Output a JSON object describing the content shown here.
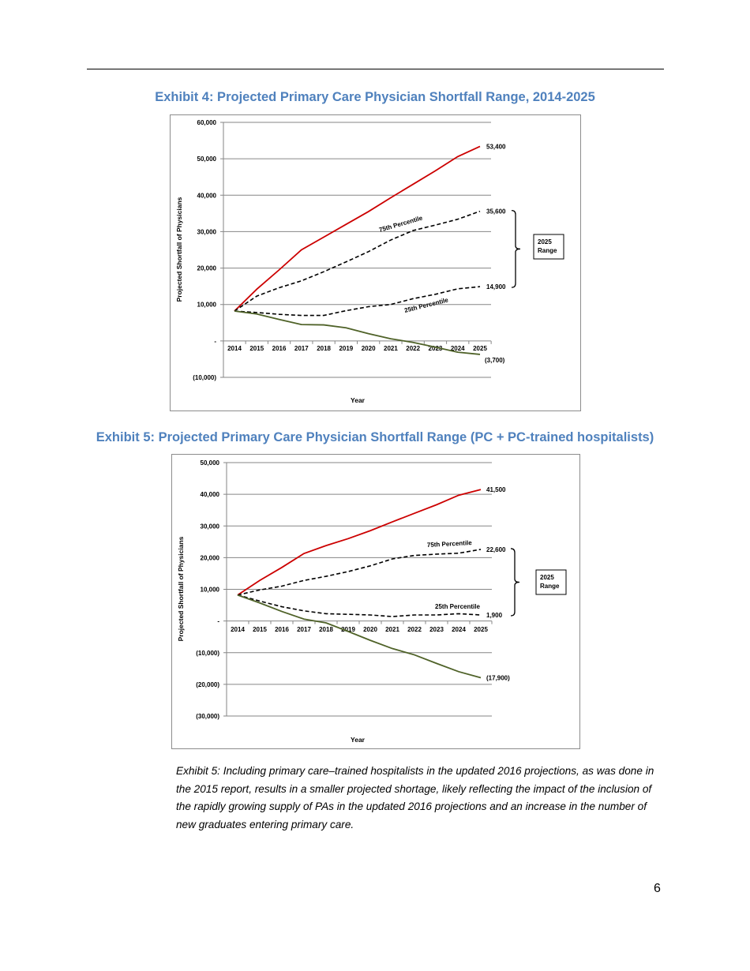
{
  "page": {
    "exhibit4_title": "Exhibit 4: Projected Primary Care Physician Shortfall Range, 2014-2025",
    "exhibit5_title": "Exhibit 5: Projected Primary Care Physician Shortfall Range (PC + PC-trained hospitalists)",
    "caption": "Exhibit 5: Including primary care–trained hospitalists in the updated 2016 projections, as was done in the 2015 report, results in a smaller projected shortage, likely reflecting the impact of the inclusion of the rapidly growing supply of PAs in the updated 2016 projections and an increase in the number of new graduates entering primary care.",
    "page_number": "6",
    "title_color": "#4f81bd"
  },
  "chart_data": [
    {
      "type": "line",
      "title": "",
      "xlabel": "Year",
      "ylabel": "Projected Shortfall of Physicians",
      "x": [
        "2014",
        "2015",
        "2016",
        "2017",
        "2018",
        "2019",
        "2020",
        "2021",
        "2022",
        "2023",
        "2024",
        "2025"
      ],
      "ylim": [
        -10000,
        60000
      ],
      "yticks": [
        -10000,
        0,
        10000,
        20000,
        30000,
        40000,
        50000,
        60000
      ],
      "ytick_labels": [
        "(10,000)",
        "-",
        "10,000",
        "20,000",
        "30,000",
        "40,000",
        "50,000",
        "60,000"
      ],
      "grid": true,
      "legend": "none",
      "series": [
        {
          "color": "#cc0000",
          "style": "solid",
          "end_label": "53,400",
          "values": [
            8200,
            14200,
            19500,
            25000,
            28500,
            32000,
            35500,
            39300,
            43000,
            46700,
            50600,
            53400
          ]
        },
        {
          "color": "#000000",
          "style": "dashed",
          "end_label": "35,600",
          "values": [
            8200,
            12300,
            14600,
            16500,
            19000,
            21700,
            24500,
            27700,
            30300,
            31800,
            33400,
            35600
          ]
        },
        {
          "color": "#000000",
          "style": "dashed",
          "end_label": "14,900",
          "values": [
            8200,
            7800,
            7300,
            7000,
            7000,
            8300,
            9400,
            10000,
            11600,
            12800,
            14300,
            14900
          ]
        },
        {
          "color": "#4f6228",
          "style": "solid",
          "end_label": "(3,700)",
          "values": [
            8200,
            7400,
            5900,
            4500,
            4400,
            3600,
            2000,
            600,
            -400,
            -1700,
            -3100,
            -3700
          ]
        }
      ],
      "annotations": {
        "p75": "75th Percentile",
        "p25": "25th Percentile",
        "range": "2025 Range"
      }
    },
    {
      "type": "line",
      "title": "",
      "xlabel": "Year",
      "ylabel": "Projected Shortfall of Physicians",
      "x": [
        "2014",
        "2015",
        "2016",
        "2017",
        "2018",
        "2019",
        "2020",
        "2021",
        "2022",
        "2023",
        "2024",
        "2025"
      ],
      "ylim": [
        -30000,
        50000
      ],
      "yticks": [
        -30000,
        -20000,
        -10000,
        0,
        10000,
        20000,
        30000,
        40000,
        50000
      ],
      "ytick_labels": [
        "(30,000)",
        "(20,000)",
        "(10,000)",
        "-",
        "10,000",
        "20,000",
        "30,000",
        "40,000",
        "50,000"
      ],
      "grid": true,
      "legend": "none",
      "series": [
        {
          "color": "#cc0000",
          "style": "solid",
          "end_label": "41,500",
          "values": [
            8200,
            12800,
            16900,
            21300,
            23800,
            26000,
            28500,
            31300,
            34000,
            36700,
            39700,
            41500
          ]
        },
        {
          "color": "#000000",
          "style": "dashed",
          "end_label": "22,600",
          "values": [
            8200,
            9800,
            11000,
            12800,
            14100,
            15600,
            17400,
            19600,
            20700,
            21100,
            21400,
            22600
          ]
        },
        {
          "color": "#000000",
          "style": "dashed",
          "end_label": "1,900",
          "values": [
            8200,
            6300,
            4500,
            3200,
            2300,
            2100,
            1900,
            1400,
            1900,
            1900,
            2300,
            1900
          ]
        },
        {
          "color": "#4f6228",
          "style": "solid",
          "end_label": "(17,900)",
          "values": [
            8200,
            5700,
            3000,
            600,
            -600,
            -3300,
            -6100,
            -8700,
            -10700,
            -13400,
            -16000,
            -17900
          ]
        }
      ],
      "annotations": {
        "p75": "75th Percentile",
        "p25": "25th Percentile",
        "range": "2025 Range"
      }
    }
  ]
}
